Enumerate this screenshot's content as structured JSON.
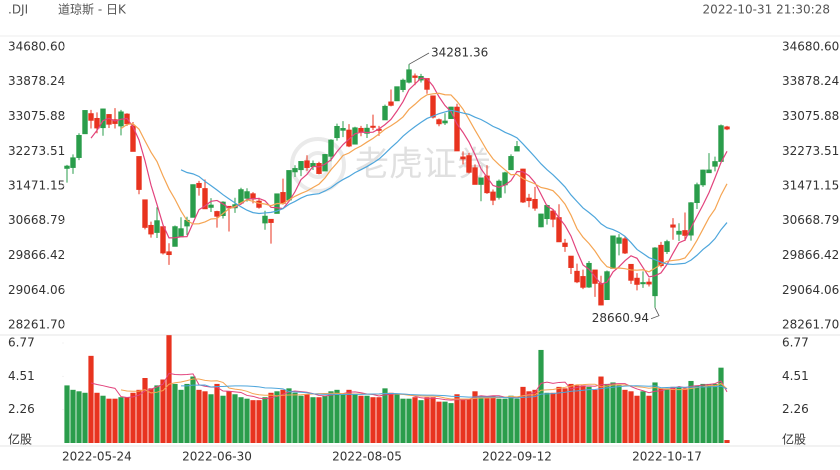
{
  "chart_data": {
    "type": "candlestick",
    "title": ".DJI",
    "subtitle": "道琼斯 - 日K",
    "timestamp": "2022-10-31 21:30:28",
    "watermark": "老虎证券",
    "up_color": "#2a9d4b",
    "down_color": "#e8331f",
    "moving_averages": [
      {
        "period": 5,
        "color": "#e2437d"
      },
      {
        "period": 10,
        "color": "#f5a553"
      },
      {
        "period": 20,
        "color": "#4ea6dc"
      }
    ],
    "categories": [
      "2022-05-24",
      null,
      null,
      null,
      null,
      null,
      null,
      null,
      null,
      null,
      null,
      null,
      null,
      null,
      null,
      null,
      null,
      null,
      null,
      null,
      null,
      null,
      null,
      null,
      null,
      "2022-06-30",
      null,
      null,
      null,
      null,
      null,
      null,
      null,
      null,
      null,
      null,
      null,
      null,
      null,
      null,
      null,
      null,
      null,
      null,
      null,
      null,
      null,
      null,
      null,
      null,
      "2022-08-05",
      null,
      null,
      null,
      null,
      null,
      null,
      null,
      null,
      null,
      null,
      null,
      null,
      null,
      null,
      null,
      null,
      null,
      null,
      null,
      null,
      null,
      null,
      null,
      null,
      "2022-09-12",
      null,
      null,
      null,
      null,
      null,
      null,
      null,
      null,
      null,
      null,
      null,
      null,
      null,
      null,
      null,
      null,
      null,
      null,
      null,
      null,
      null,
      null,
      null,
      null,
      "2022-10-17",
      null,
      null,
      null,
      null,
      null,
      null,
      null,
      null,
      null,
      null
    ],
    "open": [
      31880,
      31900,
      32130,
      32680,
      33140,
      33030,
      32820,
      33120,
      33000,
      32860,
      33130,
      32850,
      32150,
      31150,
      30560,
      30400,
      30530,
      29950,
      30080,
      30300,
      30550,
      30750,
      31530,
      31410,
      30980,
      30880,
      30790,
      31000,
      30970,
      31080,
      31190,
      31290,
      31120,
      30620,
      30700,
      30840,
      31320,
      31150,
      31800,
      31850,
      32050,
      31920,
      31990,
      31820,
      32160,
      32590,
      32760,
      32760,
      32440,
      32800,
      32690,
      32850,
      32780,
      33000,
      33410,
      33440,
      33700,
      33870,
      34010,
      33920,
      33950,
      33550,
      33000,
      32930,
      33030,
      33290,
      32140,
      32170,
      31890,
      31510,
      31700,
      31330,
      31210,
      31500,
      31850,
      32280,
      31860,
      31190,
      31160,
      30530,
      30720,
      30890,
      30740,
      30150,
      29850,
      29500,
      29380,
      29140,
      29530,
      29220,
      28850,
      29570,
      30150,
      30250,
      29660,
      29340,
      29220,
      29250,
      28940,
      30100,
      29960,
      30570,
      30360,
      30440,
      30340,
      31090,
      31500,
      31780,
      31930,
      32040,
      32833
    ],
    "high": [
      31960,
      32200,
      32690,
      33220,
      33230,
      33170,
      33260,
      33130,
      33270,
      33230,
      33150,
      32950,
      32150,
      31150,
      30650,
      30980,
      30530,
      30150,
      30560,
      30750,
      30760,
      31510,
      31590,
      31620,
      31190,
      30900,
      31120,
      31010,
      31200,
      31430,
      31420,
      31330,
      31200,
      30900,
      30700,
      31290,
      31640,
      31830,
      31950,
      32040,
      32180,
      32060,
      32030,
      32210,
      32550,
      32910,
      32970,
      32900,
      32840,
      32860,
      32900,
      33120,
      32860,
      33350,
      33700,
      33770,
      33950,
      34281.36,
      34070,
      34060,
      33960,
      33560,
      33030,
      33150,
      33300,
      33370,
      32270,
      32240,
      31970,
      31660,
      31950,
      31390,
      31620,
      31800,
      32200,
      32510,
      31870,
      31290,
      31450,
      30830,
      31040,
      30930,
      31050,
      30250,
      29850,
      29680,
      29540,
      29740,
      29530,
      29400,
      29520,
      30320,
      30360,
      30310,
      29660,
      29460,
      29500,
      29340,
      30060,
      30180,
      30230,
      30730,
      30610,
      30860,
      31100,
      31550,
      31850,
      32230,
      32150,
      32890,
      32860
    ],
    "low": [
      31550,
      31750,
      32070,
      32680,
      32800,
      32690,
      32630,
      32810,
      32800,
      32640,
      32860,
      32270,
      31280,
      30470,
      30280,
      30270,
      29890,
      29650,
      30080,
      30300,
      30340,
      30750,
      31250,
      30940,
      30870,
      30510,
      30720,
      30420,
      30850,
      31080,
      31110,
      31070,
      30950,
      30460,
      30140,
      30840,
      31040,
      31150,
      31680,
      31700,
      31820,
      31840,
      31740,
      31820,
      32040,
      32520,
      32600,
      32370,
      32440,
      32620,
      32580,
      32760,
      32630,
      33000,
      33310,
      33440,
      33640,
      33840,
      33800,
      33860,
      33600,
      33030,
      32850,
      32880,
      33020,
      32280,
      31970,
      31760,
      31510,
      31120,
      31290,
      31030,
      31160,
      31300,
      31850,
      32280,
      31080,
      30980,
      30900,
      30520,
      30580,
      30520,
      30180,
      29950,
      29440,
      29230,
      29090,
      29120,
      28910,
      28715,
      28850,
      29570,
      29870,
      29900,
      29210,
      29060,
      29120,
      29150,
      28660.94,
      29590,
      29900,
      30230,
      30200,
      30200,
      30210,
      30940,
      31450,
      31770,
      31810,
      32000,
      32760
    ],
    "close": [
      31928,
      32120,
      32637,
      33213,
      32990,
      32813,
      33248,
      32900,
      32916,
      33180,
      32910,
      32272,
      31393,
      30517,
      30365,
      30668,
      29927,
      29889,
      30530,
      30483,
      30677,
      31500,
      31438,
      30947,
      31029,
      30775,
      31097,
      30967,
      31037,
      31385,
      31338,
      31173,
      30981,
      30772,
      30630,
      31288,
      31072,
      31827,
      31874,
      32036,
      31899,
      31990,
      31761,
      32197,
      32529,
      32845,
      32798,
      32396,
      32812,
      32726,
      32803,
      32832,
      32774,
      33309,
      33336,
      33761,
      33912,
      34152,
      33980,
      33999,
      33706,
      33063,
      32909,
      32969,
      33291,
      32283,
      32098,
      31790,
      31510,
      31656,
      31318,
      31145,
      31581,
      31774,
      32151,
      32381,
      31104,
      31135,
      30961,
      30822,
      31019,
      30706,
      30184,
      30076,
      29590,
      29260,
      29134,
      29683,
      29225,
      28725,
      29490,
      30316,
      30273,
      29926,
      29296,
      29202,
      29239,
      29210,
      30038,
      29634,
      30185,
      30523,
      30424,
      30333,
      31082,
      31499,
      31837,
      31839,
      32033,
      32861,
      32790
    ],
    "volume": [
      3.9,
      3.6,
      3.5,
      3.4,
      5.9,
      3.4,
      3.2,
      3.0,
      3.0,
      3.1,
      3.1,
      3.4,
      3.6,
      4.4,
      3.7,
      3.9,
      4.3,
      7.3,
      4.0,
      3.6,
      4.0,
      4.5,
      3.6,
      3.5,
      3.3,
      4.0,
      3.2,
      3.5,
      3.3,
      3.1,
      3.0,
      2.9,
      2.9,
      3.1,
      3.4,
      3.5,
      3.6,
      3.7,
      3.4,
      3.2,
      3.3,
      3.1,
      3.1,
      3.2,
      3.5,
      3.6,
      3.3,
      3.6,
      3.3,
      3.2,
      3.2,
      3.1,
      3.1,
      3.7,
      3.4,
      3.3,
      3.0,
      3.0,
      3.1,
      2.9,
      3.1,
      3.1,
      2.8,
      2.8,
      2.7,
      3.3,
      3.0,
      3.0,
      3.5,
      3.2,
      3.1,
      3.2,
      3.0,
      3.0,
      3.2,
      3.0,
      3.8,
      3.5,
      3.6,
      6.3,
      3.4,
      3.4,
      3.8,
      3.7,
      4.0,
      3.9,
      3.9,
      3.8,
      3.6,
      4.5,
      4.0,
      4.1,
      3.9,
      3.6,
      3.5,
      3.2,
      3.5,
      3.2,
      4.1,
      3.7,
      3.7,
      3.8,
      3.8,
      3.7,
      4.2,
      3.9,
      4.0,
      4.0,
      4.0,
      5.1,
      0.2
    ],
    "ylim": [
      28261.7,
      34680.6
    ],
    "yticks": [
      {
        "value": 34680.6,
        "label": "34680.60"
      },
      {
        "value": 33878.24,
        "label": "33878.24"
      },
      {
        "value": 33075.88,
        "label": "33075.88"
      },
      {
        "value": 32273.51,
        "label": "32273.51"
      },
      {
        "value": 31471.15,
        "label": "31471.15"
      },
      {
        "value": 30668.79,
        "label": "30668.79"
      },
      {
        "value": 29866.42,
        "label": "29866.42"
      },
      {
        "value": 29064.06,
        "label": "29064.06"
      },
      {
        "value": 28261.7,
        "label": "28261.70"
      }
    ],
    "volume_lim": [
      0,
      6.77
    ],
    "volume_ticks": [
      6.77,
      4.51,
      2.26
    ],
    "volume_unit": "亿股",
    "high_marker_index": 57,
    "low_marker_index": 98
  }
}
